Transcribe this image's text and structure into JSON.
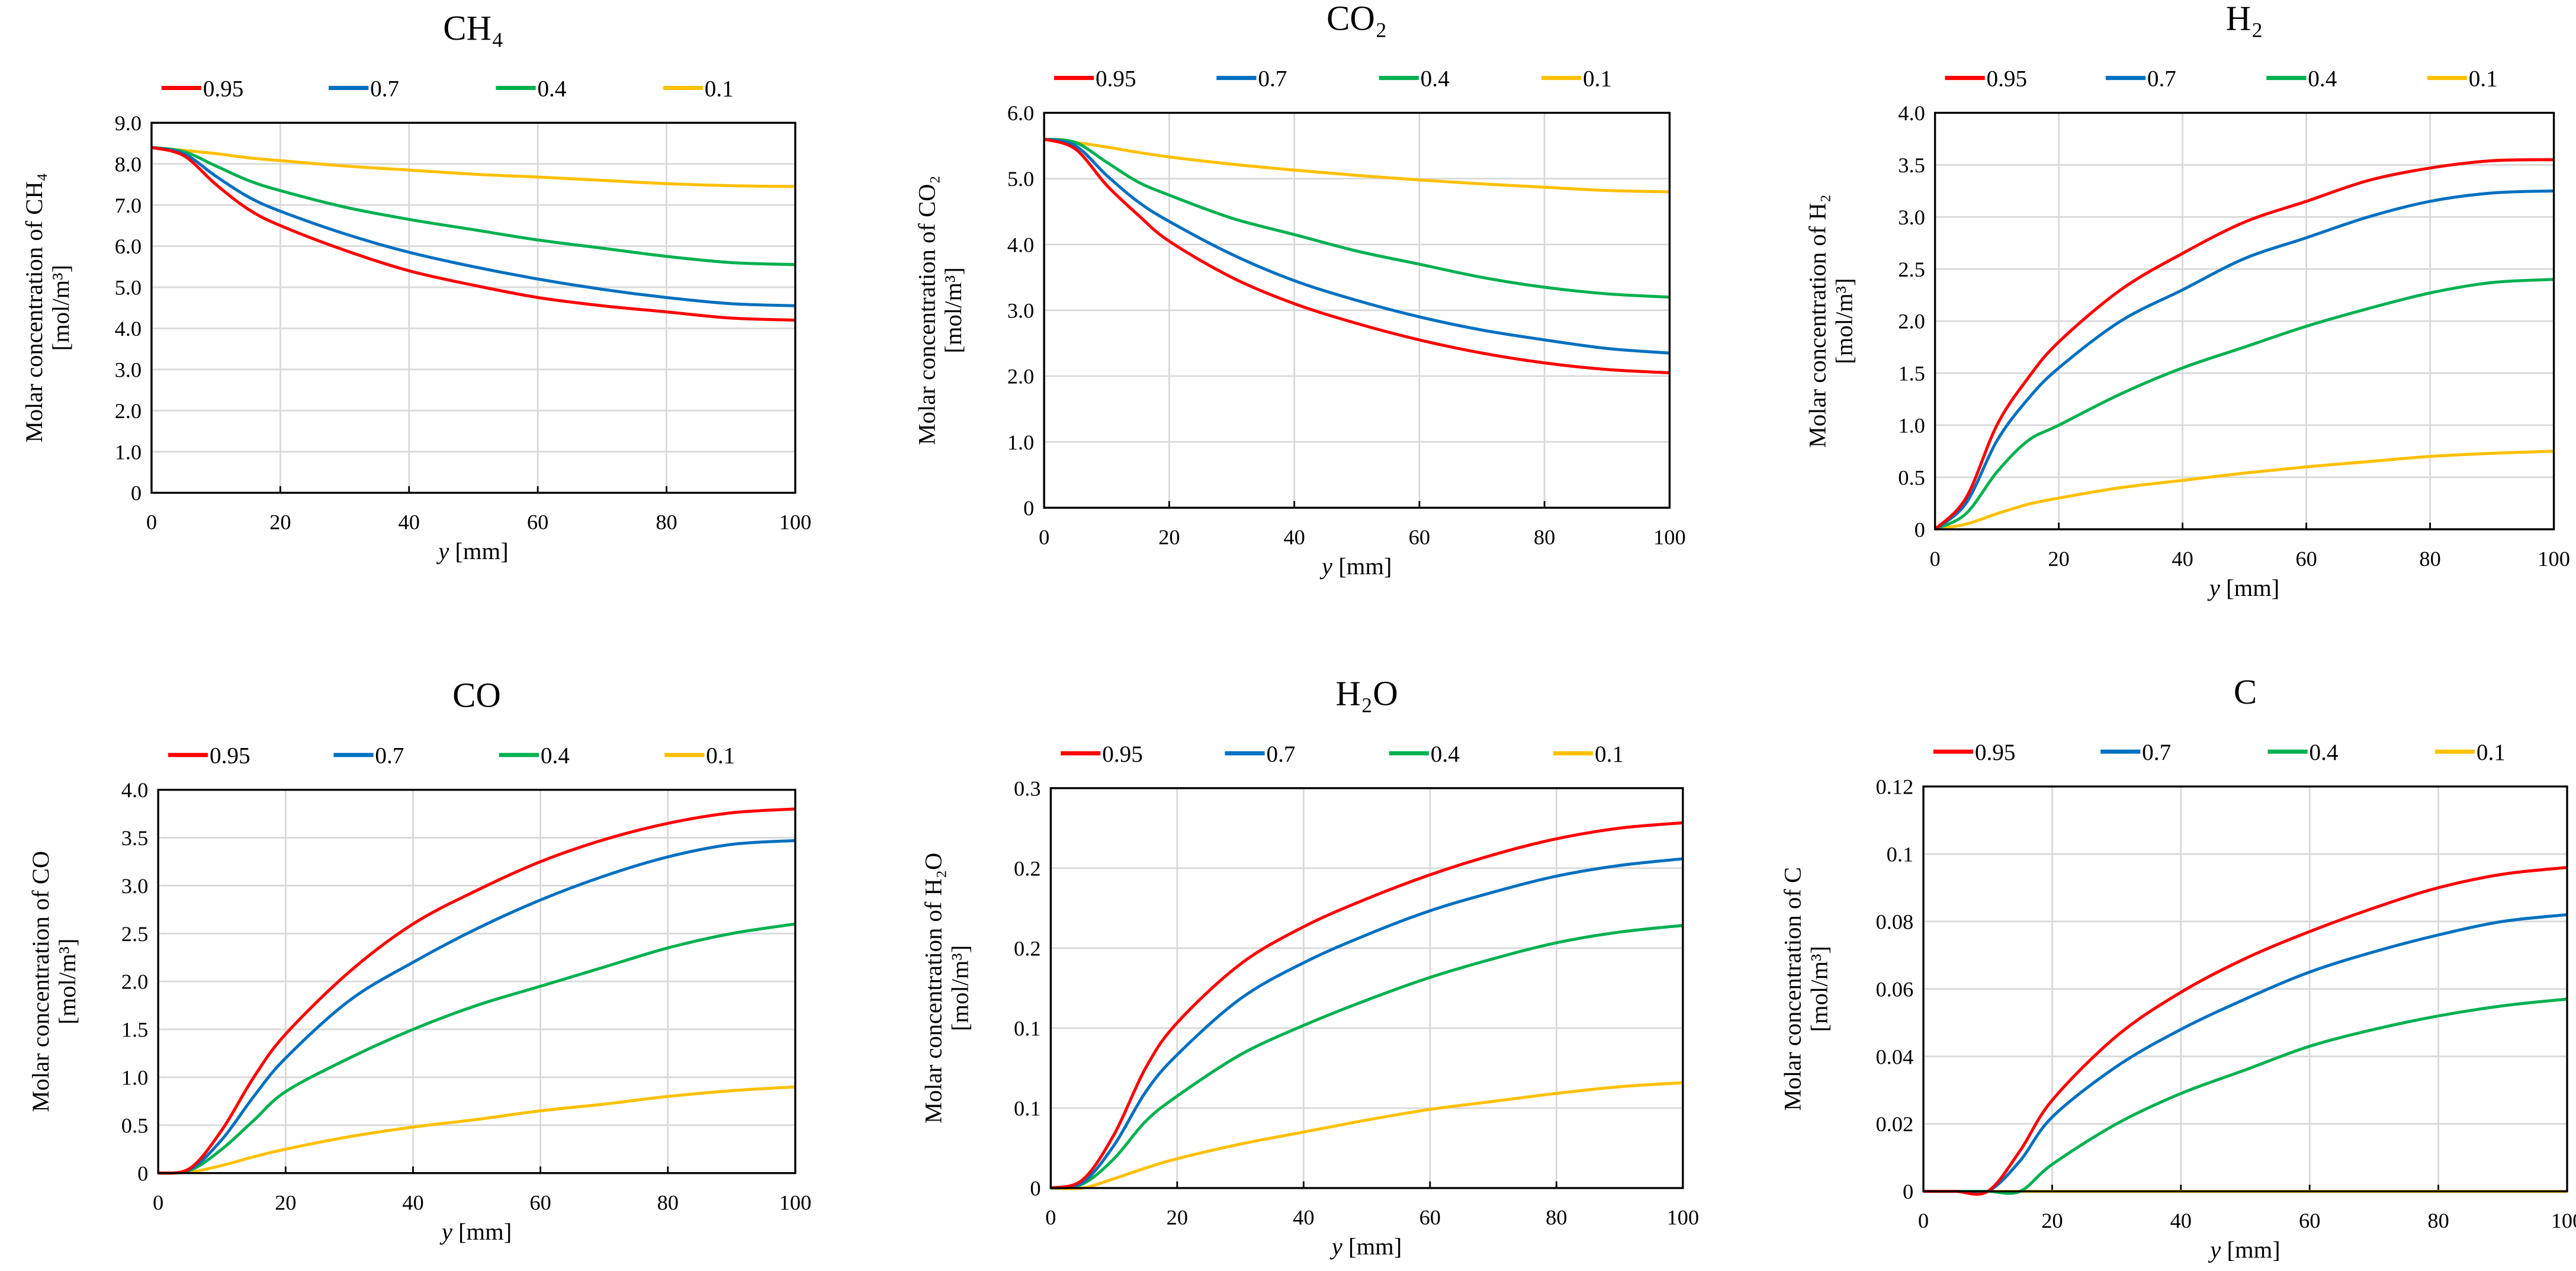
{
  "chart_data": [
    {
      "type": "line",
      "title": "CH₄",
      "ylabel": "Molar concentration of CH₄",
      "yunit": "[mol/m³]",
      "xlabel_var": "y",
      "xlabel_unit": "[mm]",
      "xlim": [
        0,
        100
      ],
      "ylim": [
        0,
        9
      ],
      "xticks": [
        "0",
        "20",
        "40",
        "60",
        "80",
        "100"
      ],
      "yticks": [
        "0",
        "1.0",
        "2.0",
        "3.0",
        "4.0",
        "5.0",
        "6.0",
        "7.0",
        "8.0",
        "9.0"
      ],
      "grid": true,
      "legend": "top",
      "x": [
        0,
        5,
        10,
        15,
        20,
        30,
        40,
        50,
        60,
        70,
        80,
        90,
        100
      ],
      "series": [
        {
          "name": "0.95",
          "color": "#ff0000",
          "values": [
            8.4,
            8.2,
            7.5,
            6.9,
            6.5,
            5.9,
            5.4,
            5.05,
            4.75,
            4.55,
            4.4,
            4.25,
            4.2
          ]
        },
        {
          "name": "0.7",
          "color": "#0070c0",
          "values": [
            8.4,
            8.25,
            7.7,
            7.2,
            6.85,
            6.3,
            5.85,
            5.5,
            5.2,
            4.95,
            4.75,
            4.6,
            4.55
          ]
        },
        {
          "name": "0.4",
          "color": "#00b050",
          "values": [
            8.4,
            8.3,
            7.95,
            7.6,
            7.35,
            6.95,
            6.65,
            6.4,
            6.15,
            5.95,
            5.75,
            5.6,
            5.55
          ]
        },
        {
          "name": "0.1",
          "color": "#ffc000",
          "values": [
            8.4,
            8.33,
            8.25,
            8.15,
            8.08,
            7.95,
            7.85,
            7.75,
            7.68,
            7.6,
            7.52,
            7.47,
            7.45
          ]
        }
      ]
    },
    {
      "type": "line",
      "title": "CO₂",
      "ylabel": "Molar concentration of CO₂",
      "yunit": "[mol/m³]",
      "xlabel_var": "y",
      "xlabel_unit": "[mm]",
      "xlim": [
        0,
        100
      ],
      "ylim": [
        0,
        6
      ],
      "xticks": [
        "0",
        "20",
        "40",
        "60",
        "80",
        "100"
      ],
      "yticks": [
        "0",
        "1.0",
        "2.0",
        "3.0",
        "4.0",
        "5.0",
        "6.0"
      ],
      "grid": true,
      "legend": "top",
      "x": [
        0,
        5,
        10,
        15,
        20,
        30,
        40,
        50,
        60,
        70,
        80,
        90,
        100
      ],
      "series": [
        {
          "name": "0.95",
          "color": "#ff0000",
          "values": [
            5.6,
            5.45,
            4.9,
            4.45,
            4.05,
            3.5,
            3.1,
            2.8,
            2.55,
            2.35,
            2.2,
            2.1,
            2.05
          ]
        },
        {
          "name": "0.7",
          "color": "#0070c0",
          "values": [
            5.6,
            5.5,
            5.05,
            4.65,
            4.35,
            3.85,
            3.45,
            3.15,
            2.9,
            2.7,
            2.55,
            2.42,
            2.35
          ]
        },
        {
          "name": "0.4",
          "color": "#00b050",
          "values": [
            5.6,
            5.55,
            5.25,
            4.95,
            4.75,
            4.4,
            4.15,
            3.9,
            3.7,
            3.5,
            3.35,
            3.25,
            3.2
          ]
        },
        {
          "name": "0.1",
          "color": "#ffc000",
          "values": [
            5.6,
            5.55,
            5.48,
            5.4,
            5.33,
            5.22,
            5.13,
            5.05,
            4.98,
            4.92,
            4.87,
            4.82,
            4.8
          ]
        }
      ]
    },
    {
      "type": "line",
      "title": "H₂",
      "ylabel": "Molar concentration of H₂",
      "yunit": "[mol/m³]",
      "xlabel_var": "y",
      "xlabel_unit": "[mm]",
      "xlim": [
        0,
        100
      ],
      "ylim": [
        0,
        4
      ],
      "xticks": [
        "0",
        "20",
        "40",
        "60",
        "80",
        "100"
      ],
      "yticks": [
        "0",
        "0.5",
        "1.0",
        "1.5",
        "2.0",
        "2.5",
        "3.0",
        "3.5",
        "4.0"
      ],
      "grid": true,
      "legend": "top",
      "x": [
        0,
        5,
        10,
        15,
        20,
        30,
        40,
        50,
        60,
        70,
        80,
        90,
        100
      ],
      "series": [
        {
          "name": "0.95",
          "color": "#ff0000",
          "values": [
            0,
            0.3,
            1.0,
            1.45,
            1.8,
            2.3,
            2.65,
            2.95,
            3.15,
            3.35,
            3.47,
            3.54,
            3.55
          ]
        },
        {
          "name": "0.7",
          "color": "#0070c0",
          "values": [
            0,
            0.25,
            0.85,
            1.25,
            1.55,
            2.0,
            2.3,
            2.6,
            2.8,
            3.0,
            3.15,
            3.23,
            3.25
          ]
        },
        {
          "name": "0.4",
          "color": "#00b050",
          "values": [
            0,
            0.15,
            0.55,
            0.85,
            1.0,
            1.3,
            1.55,
            1.75,
            1.95,
            2.12,
            2.27,
            2.37,
            2.4
          ]
        },
        {
          "name": "0.1",
          "color": "#ffc000",
          "values": [
            0,
            0.05,
            0.15,
            0.24,
            0.3,
            0.4,
            0.47,
            0.54,
            0.6,
            0.65,
            0.7,
            0.73,
            0.75
          ]
        }
      ]
    },
    {
      "type": "line",
      "title": "CO",
      "ylabel": "Molar concentration of CO",
      "yunit": "[mol/m³]",
      "xlabel_var": "y",
      "xlabel_unit": "[mm]",
      "xlim": [
        0,
        100
      ],
      "ylim": [
        0,
        4
      ],
      "xticks": [
        "0",
        "20",
        "40",
        "60",
        "80",
        "100"
      ],
      "yticks": [
        "0",
        "0.5",
        "1.0",
        "1.5",
        "2.0",
        "2.5",
        "3.0",
        "3.5",
        "4.0"
      ],
      "grid": true,
      "legend": "top",
      "x": [
        0,
        5,
        10,
        15,
        20,
        30,
        40,
        50,
        60,
        70,
        80,
        90,
        100
      ],
      "series": [
        {
          "name": "0.95",
          "color": "#ff0000",
          "values": [
            0,
            0.05,
            0.45,
            1.0,
            1.45,
            2.1,
            2.6,
            2.95,
            3.25,
            3.48,
            3.65,
            3.76,
            3.8
          ]
        },
        {
          "name": "0.7",
          "color": "#0070c0",
          "values": [
            0,
            0.04,
            0.35,
            0.8,
            1.2,
            1.8,
            2.2,
            2.55,
            2.85,
            3.1,
            3.3,
            3.43,
            3.47
          ]
        },
        {
          "name": "0.4",
          "color": "#00b050",
          "values": [
            0,
            0.03,
            0.25,
            0.55,
            0.85,
            1.2,
            1.5,
            1.75,
            1.95,
            2.15,
            2.35,
            2.5,
            2.6
          ]
        },
        {
          "name": "0.1",
          "color": "#ffc000",
          "values": [
            0,
            0.01,
            0.08,
            0.17,
            0.25,
            0.38,
            0.48,
            0.56,
            0.65,
            0.72,
            0.8,
            0.86,
            0.9
          ]
        }
      ]
    },
    {
      "type": "line",
      "title": "H₂O",
      "ylabel": "Molar concentration of H₂O",
      "yunit": "[mol/m³]",
      "xlabel_var": "y",
      "xlabel_unit": "[mm]",
      "xlim": [
        0,
        100
      ],
      "ylim": [
        0,
        0.3
      ],
      "xticks": [
        "0",
        "20",
        "40",
        "60",
        "80",
        "100"
      ],
      "yticks": [
        "0",
        "0.1",
        "0.1",
        "0.2",
        "0.2",
        "0.3"
      ],
      "grid": true,
      "legend": "top",
      "x": [
        0,
        5,
        10,
        15,
        20,
        30,
        40,
        50,
        60,
        70,
        80,
        90,
        100
      ],
      "series": [
        {
          "name": "0.95",
          "color": "#ff0000",
          "values": [
            0,
            0.006,
            0.04,
            0.09,
            0.124,
            0.168,
            0.196,
            0.217,
            0.235,
            0.25,
            0.262,
            0.27,
            0.274
          ]
        },
        {
          "name": "0.7",
          "color": "#0070c0",
          "values": [
            0,
            0.004,
            0.032,
            0.072,
            0.1,
            0.142,
            0.169,
            0.19,
            0.208,
            0.222,
            0.234,
            0.242,
            0.247
          ]
        },
        {
          "name": "0.4",
          "color": "#00b050",
          "values": [
            0,
            0.003,
            0.022,
            0.05,
            0.069,
            0.1,
            0.122,
            0.141,
            0.158,
            0.172,
            0.184,
            0.192,
            0.197
          ]
        },
        {
          "name": "0.1",
          "color": "#ffc000",
          "values": [
            0,
            0,
            0.007,
            0.015,
            0.022,
            0.033,
            0.042,
            0.051,
            0.059,
            0.065,
            0.071,
            0.076,
            0.079
          ]
        }
      ]
    },
    {
      "type": "line",
      "title": "C",
      "ylabel": "Molar concentration of C",
      "yunit": "[mol/m³]",
      "xlabel_var": "y",
      "xlabel_unit": "[mm]",
      "xlim": [
        0,
        100
      ],
      "ylim": [
        0,
        0.12
      ],
      "xticks": [
        "0",
        "20",
        "40",
        "60",
        "80",
        "100"
      ],
      "yticks": [
        "0",
        "0.02",
        "0.04",
        "0.06",
        "0.08",
        "0.1",
        "0.12"
      ],
      "grid": true,
      "legend": "top",
      "x": [
        0,
        5,
        10,
        15,
        20,
        30,
        40,
        50,
        60,
        70,
        80,
        90,
        100
      ],
      "series": [
        {
          "name": "0.95",
          "color": "#ff0000",
          "values": [
            0,
            0,
            0,
            0.012,
            0.027,
            0.046,
            0.059,
            0.069,
            0.077,
            0.084,
            0.09,
            0.094,
            0.096
          ]
        },
        {
          "name": "0.7",
          "color": "#0070c0",
          "values": [
            0,
            0,
            0,
            0.009,
            0.022,
            0.037,
            0.048,
            0.057,
            0.065,
            0.071,
            0.076,
            0.08,
            0.082
          ]
        },
        {
          "name": "0.4",
          "color": "#00b050",
          "values": [
            0,
            0,
            0,
            0,
            0.008,
            0.02,
            0.029,
            0.036,
            0.043,
            0.048,
            0.052,
            0.055,
            0.057
          ]
        },
        {
          "name": "0.1",
          "color": "#ffc000",
          "values": [
            0,
            0,
            0,
            0,
            0,
            0,
            0,
            0,
            0,
            0,
            0,
            0,
            0
          ]
        }
      ]
    }
  ]
}
